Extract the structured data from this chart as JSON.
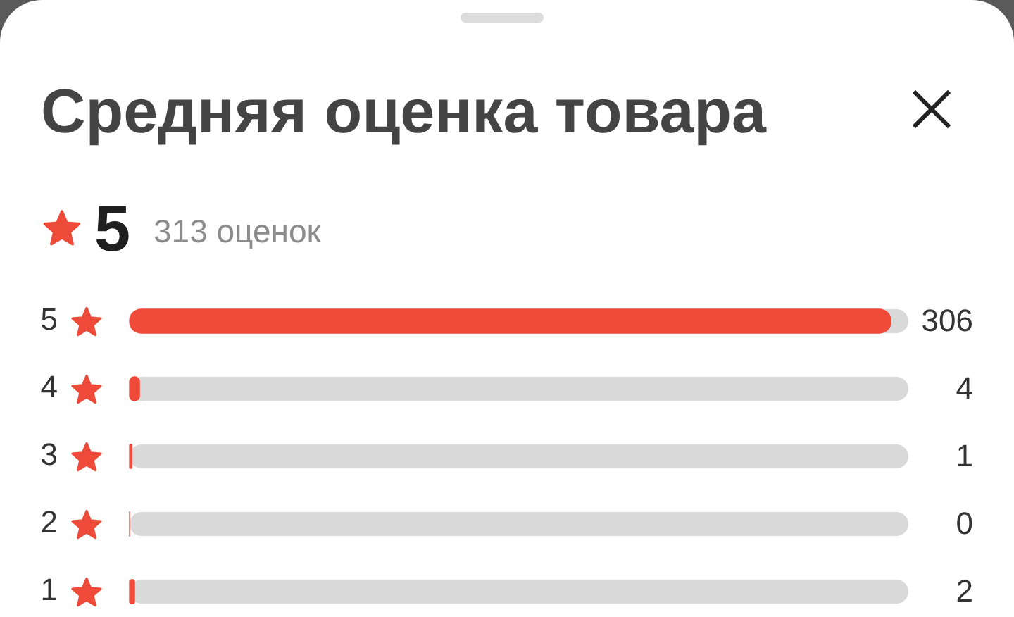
{
  "chart_data": {
    "type": "bar",
    "orientation": "horizontal",
    "title": "Средняя оценка товара",
    "subtitle": "5",
    "annotations": [
      "313 оценок"
    ],
    "categories": [
      "5",
      "4",
      "3",
      "2",
      "1"
    ],
    "values": [
      306,
      4,
      1,
      0,
      2
    ],
    "color": "#f04a3a",
    "xlim": [
      0,
      313
    ],
    "data_labels": true,
    "tick_labels": "y",
    "grid": false,
    "legend": false
  }
}
